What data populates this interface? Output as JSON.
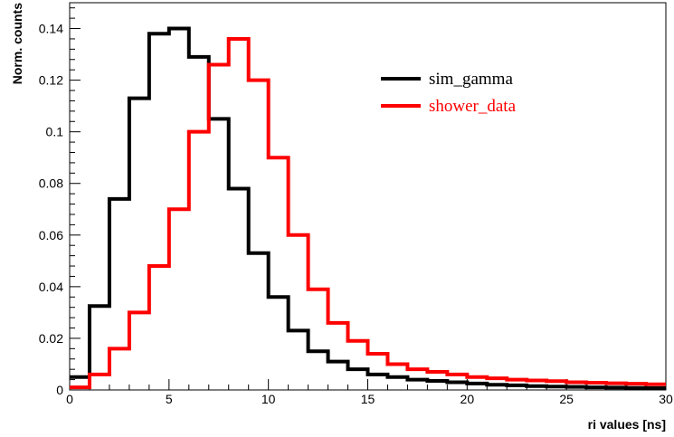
{
  "chart_data": {
    "type": "line",
    "style": "histogram-step",
    "title": "",
    "xlabel": "ri values [ns]",
    "ylabel": "Norm. counts",
    "xlim": [
      0,
      30
    ],
    "ylim": [
      0,
      0.15
    ],
    "xticks": [
      0,
      5,
      10,
      15,
      20,
      25,
      30
    ],
    "xtick_labels": [
      "0",
      "5",
      "10",
      "15",
      "20",
      "25",
      "30"
    ],
    "yticks": [
      0,
      0.02,
      0.04,
      0.06,
      0.08,
      0.1,
      0.12,
      0.14
    ],
    "ytick_labels": [
      "0",
      "0.02",
      "0.04",
      "0.06",
      "0.08",
      "0.1",
      "0.12",
      "0.14"
    ],
    "grid": false,
    "legend_position": "top-right",
    "bin_edges": [
      0,
      1,
      2,
      3,
      4,
      5,
      6,
      7,
      8,
      9,
      10,
      11,
      12,
      13,
      14,
      15,
      16,
      17,
      18,
      19,
      20,
      21,
      22,
      23,
      24,
      25,
      26,
      27,
      28,
      29,
      30
    ],
    "series": [
      {
        "name": "sim_gamma",
        "color": "#000000",
        "values": [
          0.005,
          0.0325,
          0.074,
          0.113,
          0.138,
          0.14,
          0.129,
          0.105,
          0.078,
          0.053,
          0.036,
          0.023,
          0.015,
          0.011,
          0.008,
          0.006,
          0.005,
          0.004,
          0.0035,
          0.003,
          0.0025,
          0.002,
          0.0018,
          0.0015,
          0.0013,
          0.0012,
          0.001,
          0.0009,
          0.0008,
          0.0007
        ]
      },
      {
        "name": "shower_data",
        "color": "#ff0000",
        "values": [
          0.001,
          0.006,
          0.016,
          0.03,
          0.048,
          0.07,
          0.1,
          0.126,
          0.136,
          0.12,
          0.09,
          0.06,
          0.039,
          0.026,
          0.019,
          0.014,
          0.01,
          0.008,
          0.007,
          0.006,
          0.005,
          0.0045,
          0.004,
          0.0037,
          0.0034,
          0.003,
          0.0028,
          0.0026,
          0.0024,
          0.0022
        ]
      }
    ]
  }
}
